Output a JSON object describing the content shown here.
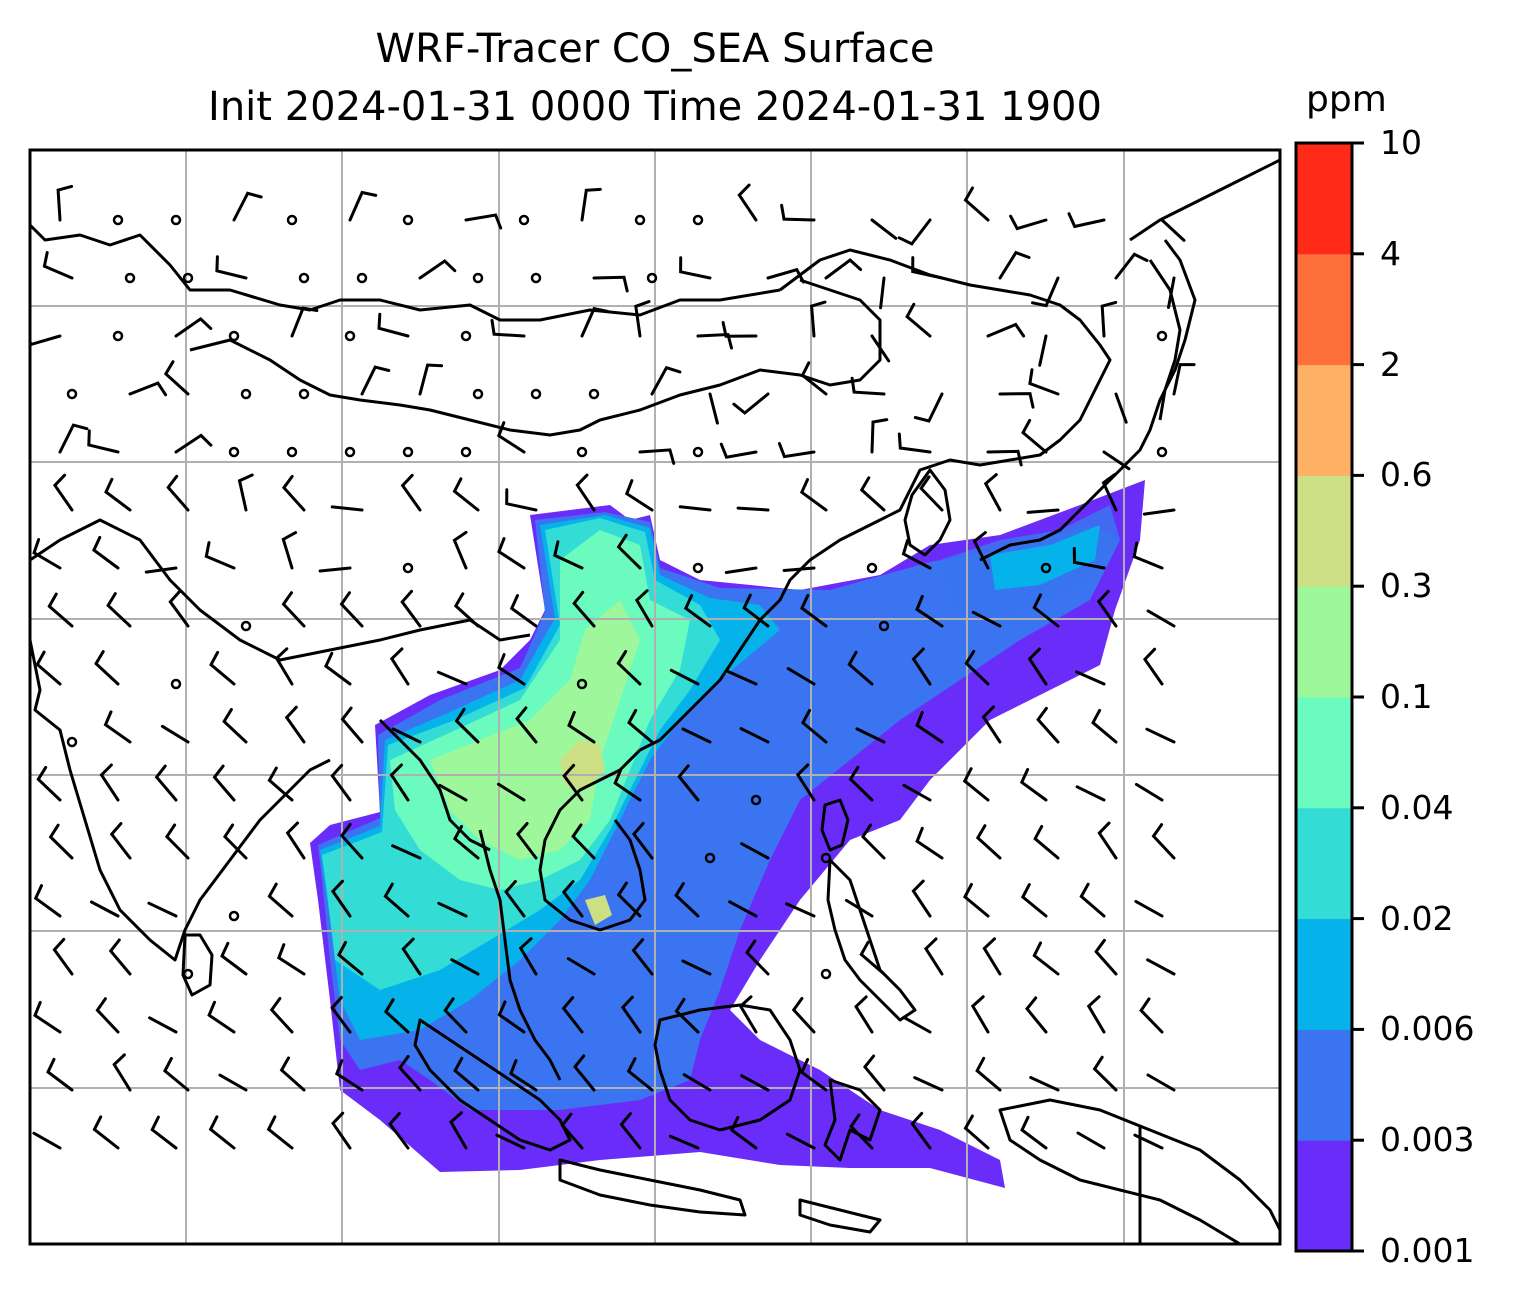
{
  "title": {
    "line1": "WRF-Tracer CO_SEA Surface",
    "line2": "Init 2024-01-31 0000 Time 2024-01-31 1900"
  },
  "colorbar": {
    "unit": "ppm",
    "levels": [
      "0.001",
      "0.003",
      "0.006",
      "0.02",
      "0.04",
      "0.1",
      "0.3",
      "0.6",
      "2",
      "4",
      "10"
    ],
    "colors": [
      "#6a2cf8",
      "#3a74f0",
      "#06b2ea",
      "#33dcd5",
      "#6bfbbe",
      "#9ff79c",
      "#cddf85",
      "#feb065",
      "#ff6f3c",
      "#ff2a18"
    ]
  },
  "map": {
    "grid": true,
    "wind_barbs": true,
    "coastlines": true,
    "colors": {
      "outline": "#000000",
      "grid": "#b0b0b0"
    }
  }
}
